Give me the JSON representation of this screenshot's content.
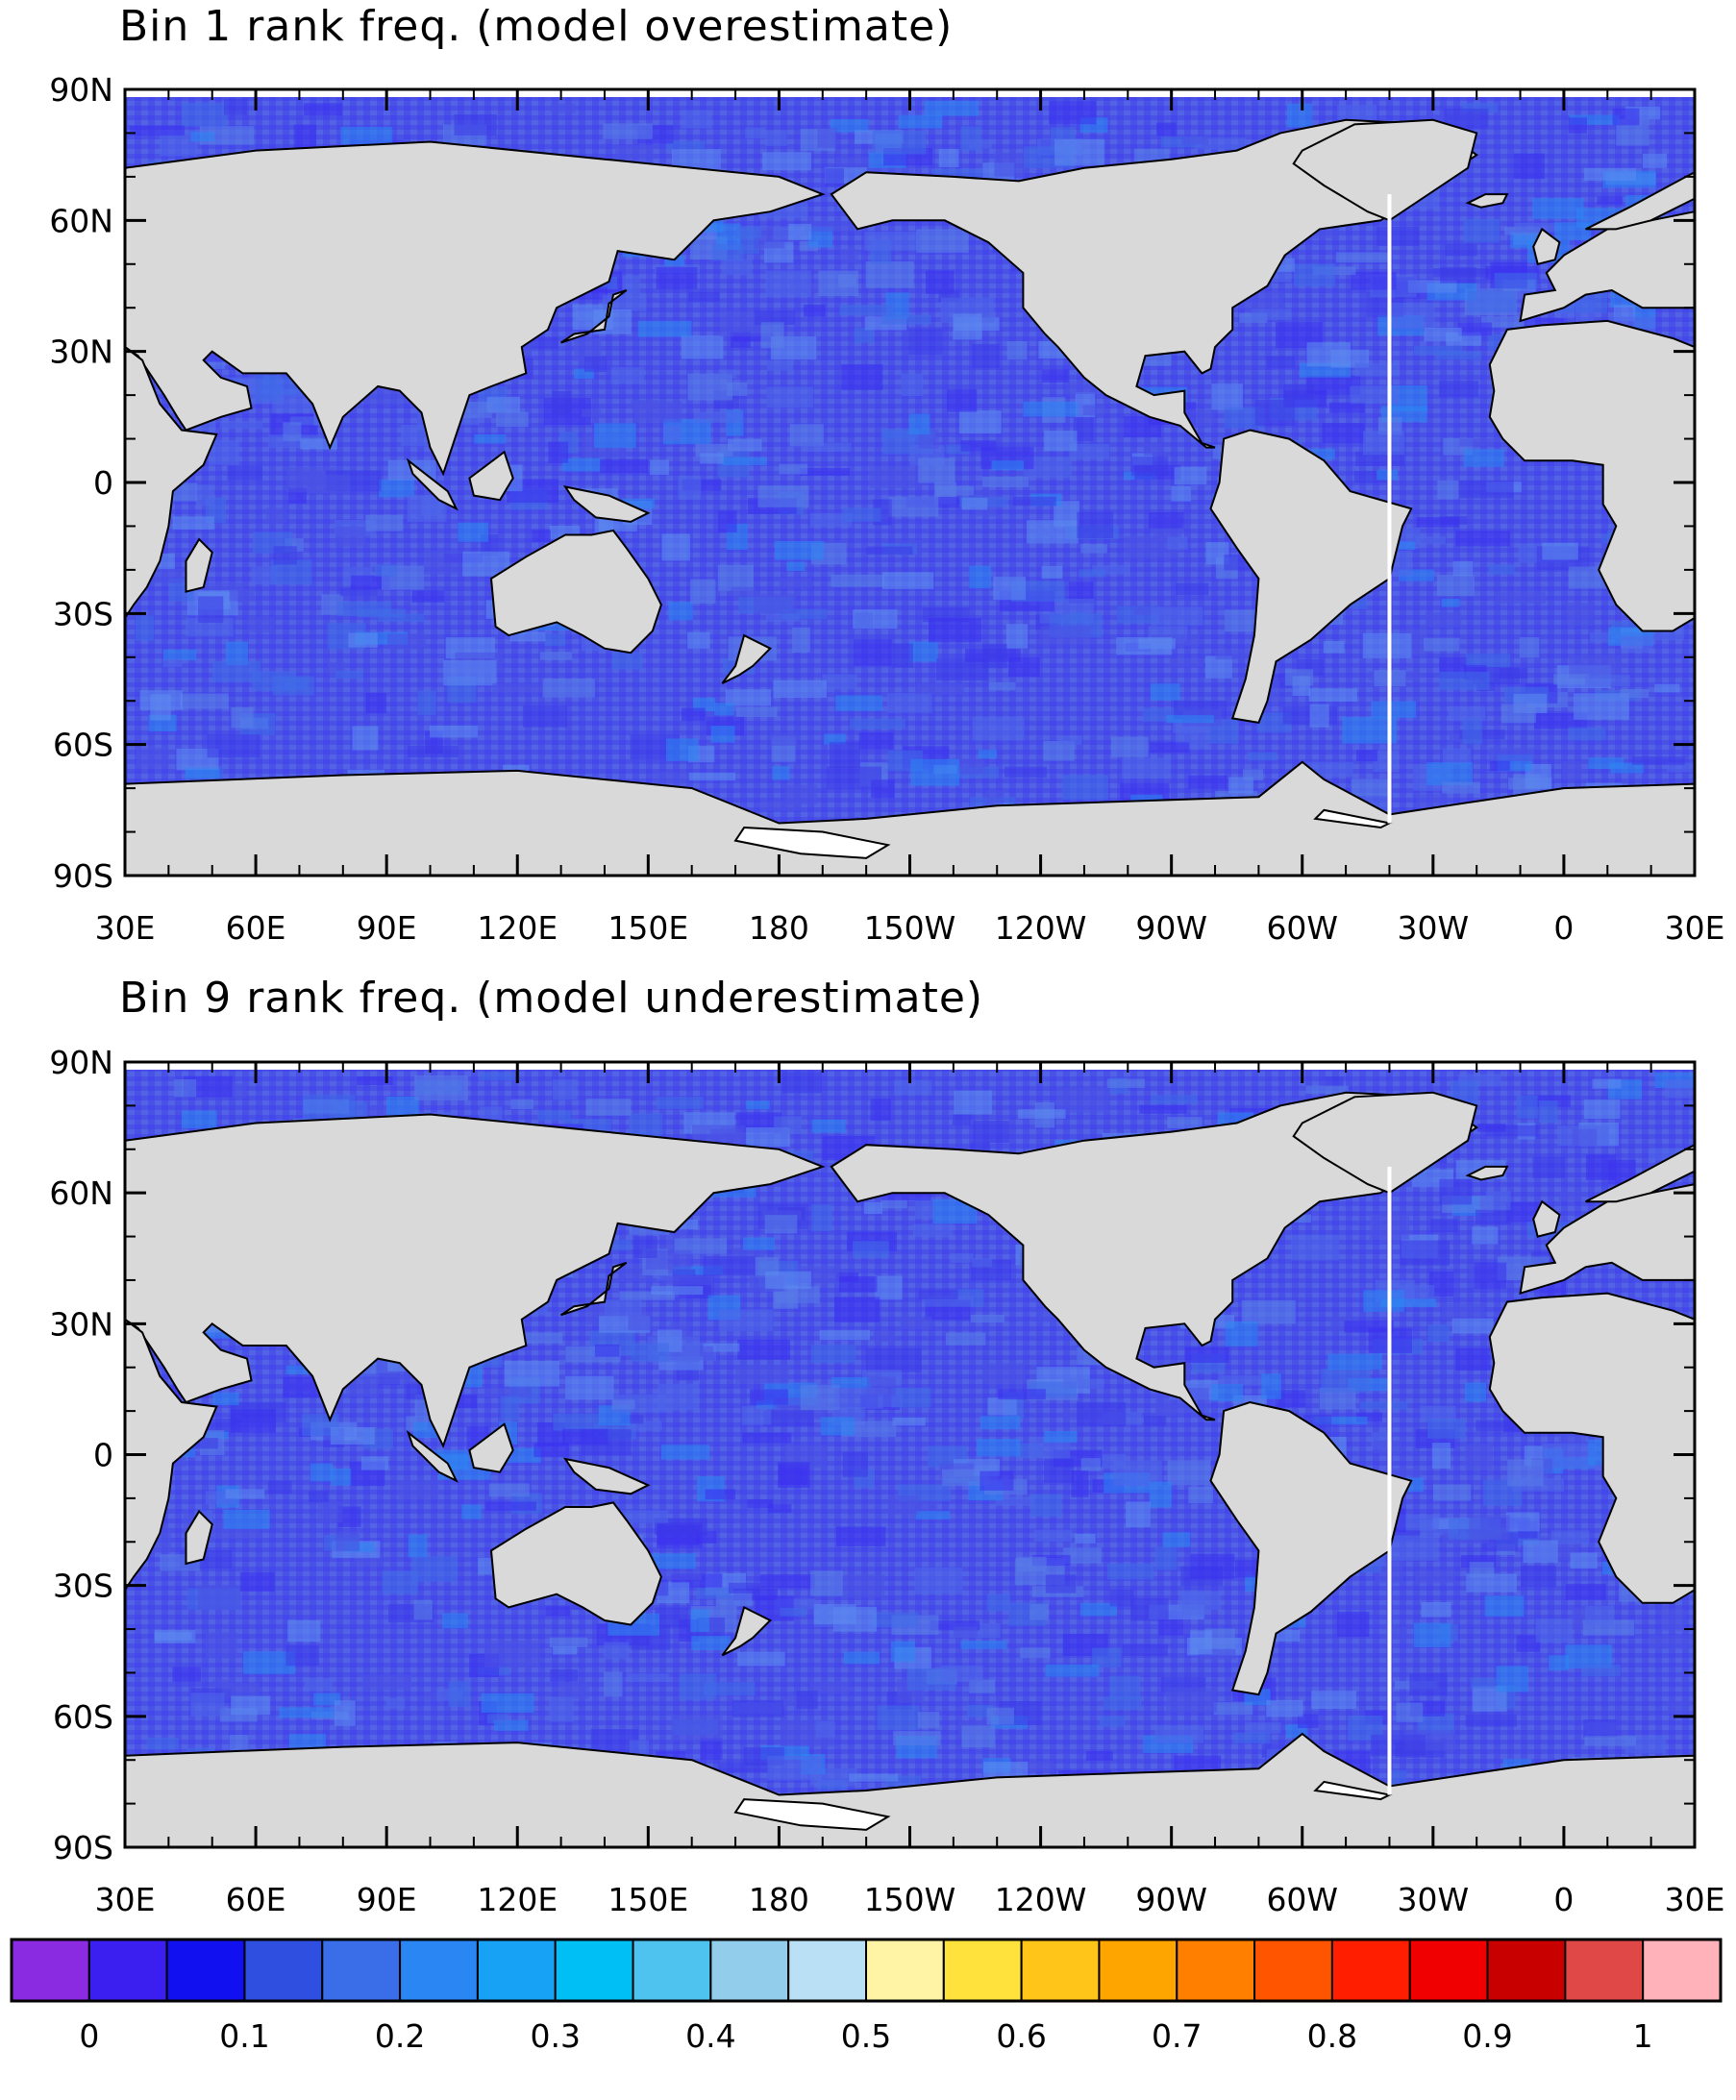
{
  "panels": [
    {
      "title": "Bin 1 rank freq. (model overestimate)"
    },
    {
      "title": "Bin 9 rank freq. (model underestimate)"
    }
  ],
  "x_tick_labels": [
    "30E",
    "60E",
    "90E",
    "120E",
    "150E",
    "180",
    "150W",
    "120W",
    "90W",
    "60W",
    "30W",
    "0",
    "30E"
  ],
  "y_tick_labels": [
    "90N",
    "60N",
    "30N",
    "0",
    "30S",
    "60S",
    "90S"
  ],
  "colorbar": {
    "colors": [
      "#8a2be2",
      "#3b1ff0",
      "#1010f0",
      "#2f4fe0",
      "#3a6ee8",
      "#2a86f2",
      "#17a2f5",
      "#00bff4",
      "#4ec3f0",
      "#92cdec",
      "#b9e0f4",
      "#fff3a5",
      "#ffe23c",
      "#ffc519",
      "#ffa500",
      "#ff7f00",
      "#ff5400",
      "#ff1e00",
      "#f00000",
      "#c80000",
      "#e04848",
      "#ffb2b9"
    ],
    "tick_labels": [
      "0",
      "0.1",
      "0.2",
      "0.3",
      "0.4",
      "0.5",
      "0.6",
      "0.7",
      "0.8",
      "0.9",
      "1"
    ]
  },
  "colors": {
    "land": "#d9d9d9",
    "ocean_base": "#4a52e6",
    "ice_shelf": "#ffffff"
  }
}
